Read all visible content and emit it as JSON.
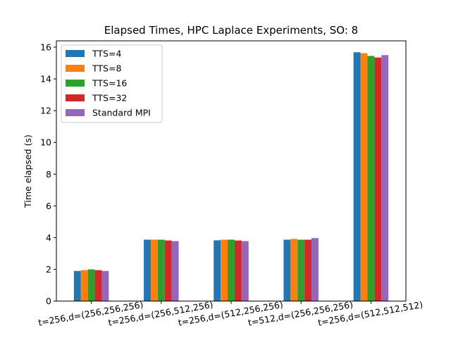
{
  "chart_data": {
    "type": "bar",
    "title": "Elapsed Times, HPC Laplace Experiments, SO: 8",
    "xlabel": "",
    "ylabel": "Time elapsed (s)",
    "ylim": [
      0,
      16.4
    ],
    "yticks": [
      "0",
      "2",
      "4",
      "6",
      "8",
      "10",
      "12",
      "14",
      "16"
    ],
    "grid": false,
    "legend_position": "top-left",
    "categories": [
      "t=256,d=(256,256,256)",
      "t=256,d=(256,512,256)",
      "t=256,d=(512,256,256)",
      "t=512,d=(256,256,256)",
      "t=256,d=(512,512,512)"
    ],
    "series": [
      {
        "name": "TTS=4",
        "color": "#1f77b4",
        "values": [
          1.9,
          3.87,
          3.83,
          3.87,
          15.68
        ]
      },
      {
        "name": "TTS=8",
        "color": "#ff7f0e",
        "values": [
          1.95,
          3.87,
          3.87,
          3.92,
          15.62
        ]
      },
      {
        "name": "TTS=16",
        "color": "#2ca02c",
        "values": [
          2.0,
          3.87,
          3.87,
          3.87,
          15.45
        ]
      },
      {
        "name": "TTS=32",
        "color": "#d62728",
        "values": [
          1.95,
          3.82,
          3.82,
          3.87,
          15.35
        ]
      },
      {
        "name": "Standard MPI",
        "color": "#9467bd",
        "values": [
          1.9,
          3.78,
          3.78,
          3.97,
          15.5
        ]
      }
    ]
  }
}
